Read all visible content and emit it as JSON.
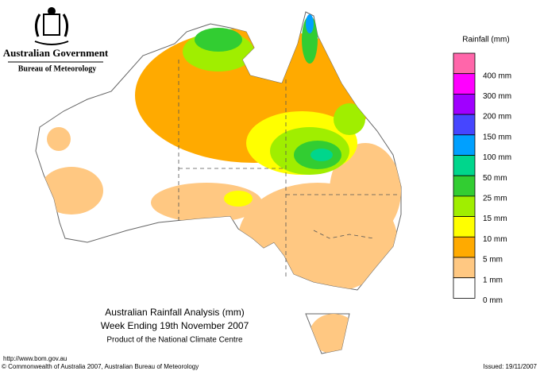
{
  "header": {
    "agency": "Australian Government",
    "bureau": "Bureau of Meteorology"
  },
  "legend": {
    "title": "Rainfall (mm)",
    "items": [
      {
        "label": "400 mm",
        "color": "#ff66aa"
      },
      {
        "label": "300 mm",
        "color": "#ff00ff"
      },
      {
        "label": "200 mm",
        "color": "#a000ff"
      },
      {
        "label": "150 mm",
        "color": "#4646ff"
      },
      {
        "label": "100 mm",
        "color": "#00a0ff"
      },
      {
        "label": "50 mm",
        "color": "#00d68c"
      },
      {
        "label": "25 mm",
        "color": "#32cd32"
      },
      {
        "label": "15 mm",
        "color": "#a0ee00"
      },
      {
        "label": "10 mm",
        "color": "#ffff00"
      },
      {
        "label": "5 mm",
        "color": "#ffaa00"
      },
      {
        "label": "1 mm",
        "color": "#ffc882"
      },
      {
        "label": "0 mm",
        "color": "#ffffff"
      }
    ]
  },
  "map": {
    "title": "Australian Rainfall Analysis (mm)",
    "subtitle": "Week Ending 19th November 2007",
    "credit": "Product of the National Climate Centre"
  },
  "footer": {
    "url": "http://www.bom.gov.au",
    "copyright": "© Commonwealth of Australia 2007, Australian Bureau of Meteorology",
    "issued": "Issued: 19/11/2007"
  }
}
